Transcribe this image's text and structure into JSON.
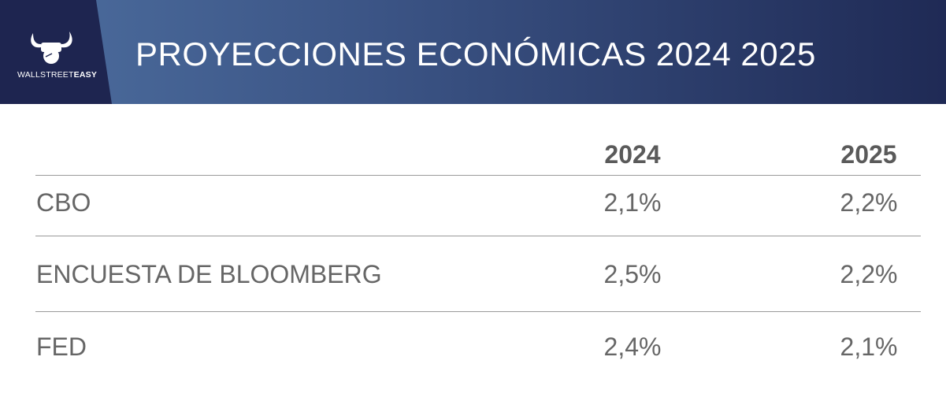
{
  "logo": {
    "text_light": "WALLSTREET",
    "text_bold": "EASY"
  },
  "title": "PROYECCIONES ECONÓMICAS 2024 2025",
  "table": {
    "columns": [
      "2024",
      "2025"
    ],
    "rows": [
      {
        "label": "CBO",
        "values": [
          "2,1%",
          "2,2%"
        ]
      },
      {
        "label": "ENCUESTA DE BLOOMBERG",
        "values": [
          "2,5%",
          "2,2%"
        ]
      },
      {
        "label": "FED",
        "values": [
          "2,4%",
          "2,1%"
        ]
      }
    ]
  }
}
